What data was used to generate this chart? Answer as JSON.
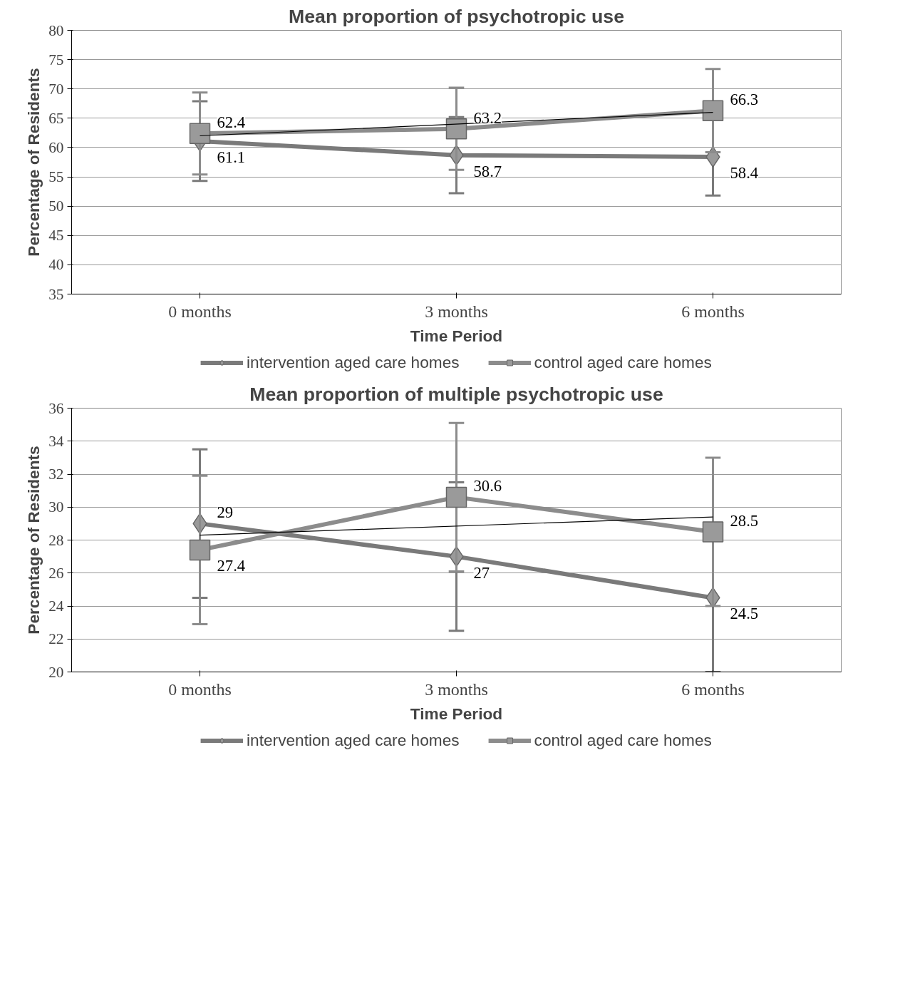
{
  "chart_data": [
    {
      "type": "line",
      "title": "Mean proportion of psychotropic use",
      "xlabel": "Time Period",
      "ylabel": "Percentage of Residents",
      "categories": [
        "0 months",
        "3 months",
        "6 months"
      ],
      "ylim": [
        35,
        80
      ],
      "yticks": [
        35,
        40,
        45,
        50,
        55,
        60,
        65,
        70,
        75,
        80
      ],
      "grid": "y",
      "legend": "bottom",
      "data_labels": true,
      "series": [
        {
          "name": "intervention aged care homes",
          "color": "#7a7a7a",
          "marker": "diamond",
          "values": [
            61.1,
            58.7,
            58.4
          ],
          "errors": [
            6.8,
            6.5,
            6.6
          ]
        },
        {
          "name": "control aged care homes",
          "color": "#8c8c8c",
          "marker": "square",
          "values": [
            62.4,
            63.2,
            66.3
          ],
          "errors": [
            7.0,
            7.0,
            7.1
          ]
        },
        {
          "type": "line",
          "color": "#000000",
          "marker": "none",
          "x": [
            "0 months",
            "6 months"
          ],
          "values": [
            62,
            66
          ],
          "value_labels": [
            null,
            null
          ]
        }
      ]
    },
    {
      "type": "line",
      "title": "Mean proportion of multiple psychotropic use",
      "xlabel": "Time Period",
      "ylabel": "Percentage of Residents",
      "categories": [
        "0 months",
        "3 months",
        "6 months"
      ],
      "ylim": [
        20,
        36
      ],
      "yticks": [
        20,
        22,
        24,
        26,
        28,
        30,
        32,
        34,
        36
      ],
      "grid": "y",
      "legend": "bottom",
      "data_labels": true,
      "series": [
        {
          "name": "intervention aged care homes",
          "color": "#7a7a7a",
          "marker": "diamond",
          "values": [
            29,
            27,
            24.5
          ],
          "errors": [
            4.5,
            4.5,
            4.5
          ]
        },
        {
          "name": "control aged care homes",
          "color": "#8c8c8c",
          "marker": "square",
          "values": [
            27.4,
            30.6,
            28.5
          ],
          "errors": [
            4.5,
            4.5,
            4.5
          ]
        },
        {
          "type": "line",
          "color": "#000000",
          "marker": "none",
          "x": [
            "0 months",
            "6 months"
          ],
          "values": [
            28.3,
            29.4
          ],
          "value_labels": [
            null,
            null
          ]
        }
      ]
    }
  ]
}
